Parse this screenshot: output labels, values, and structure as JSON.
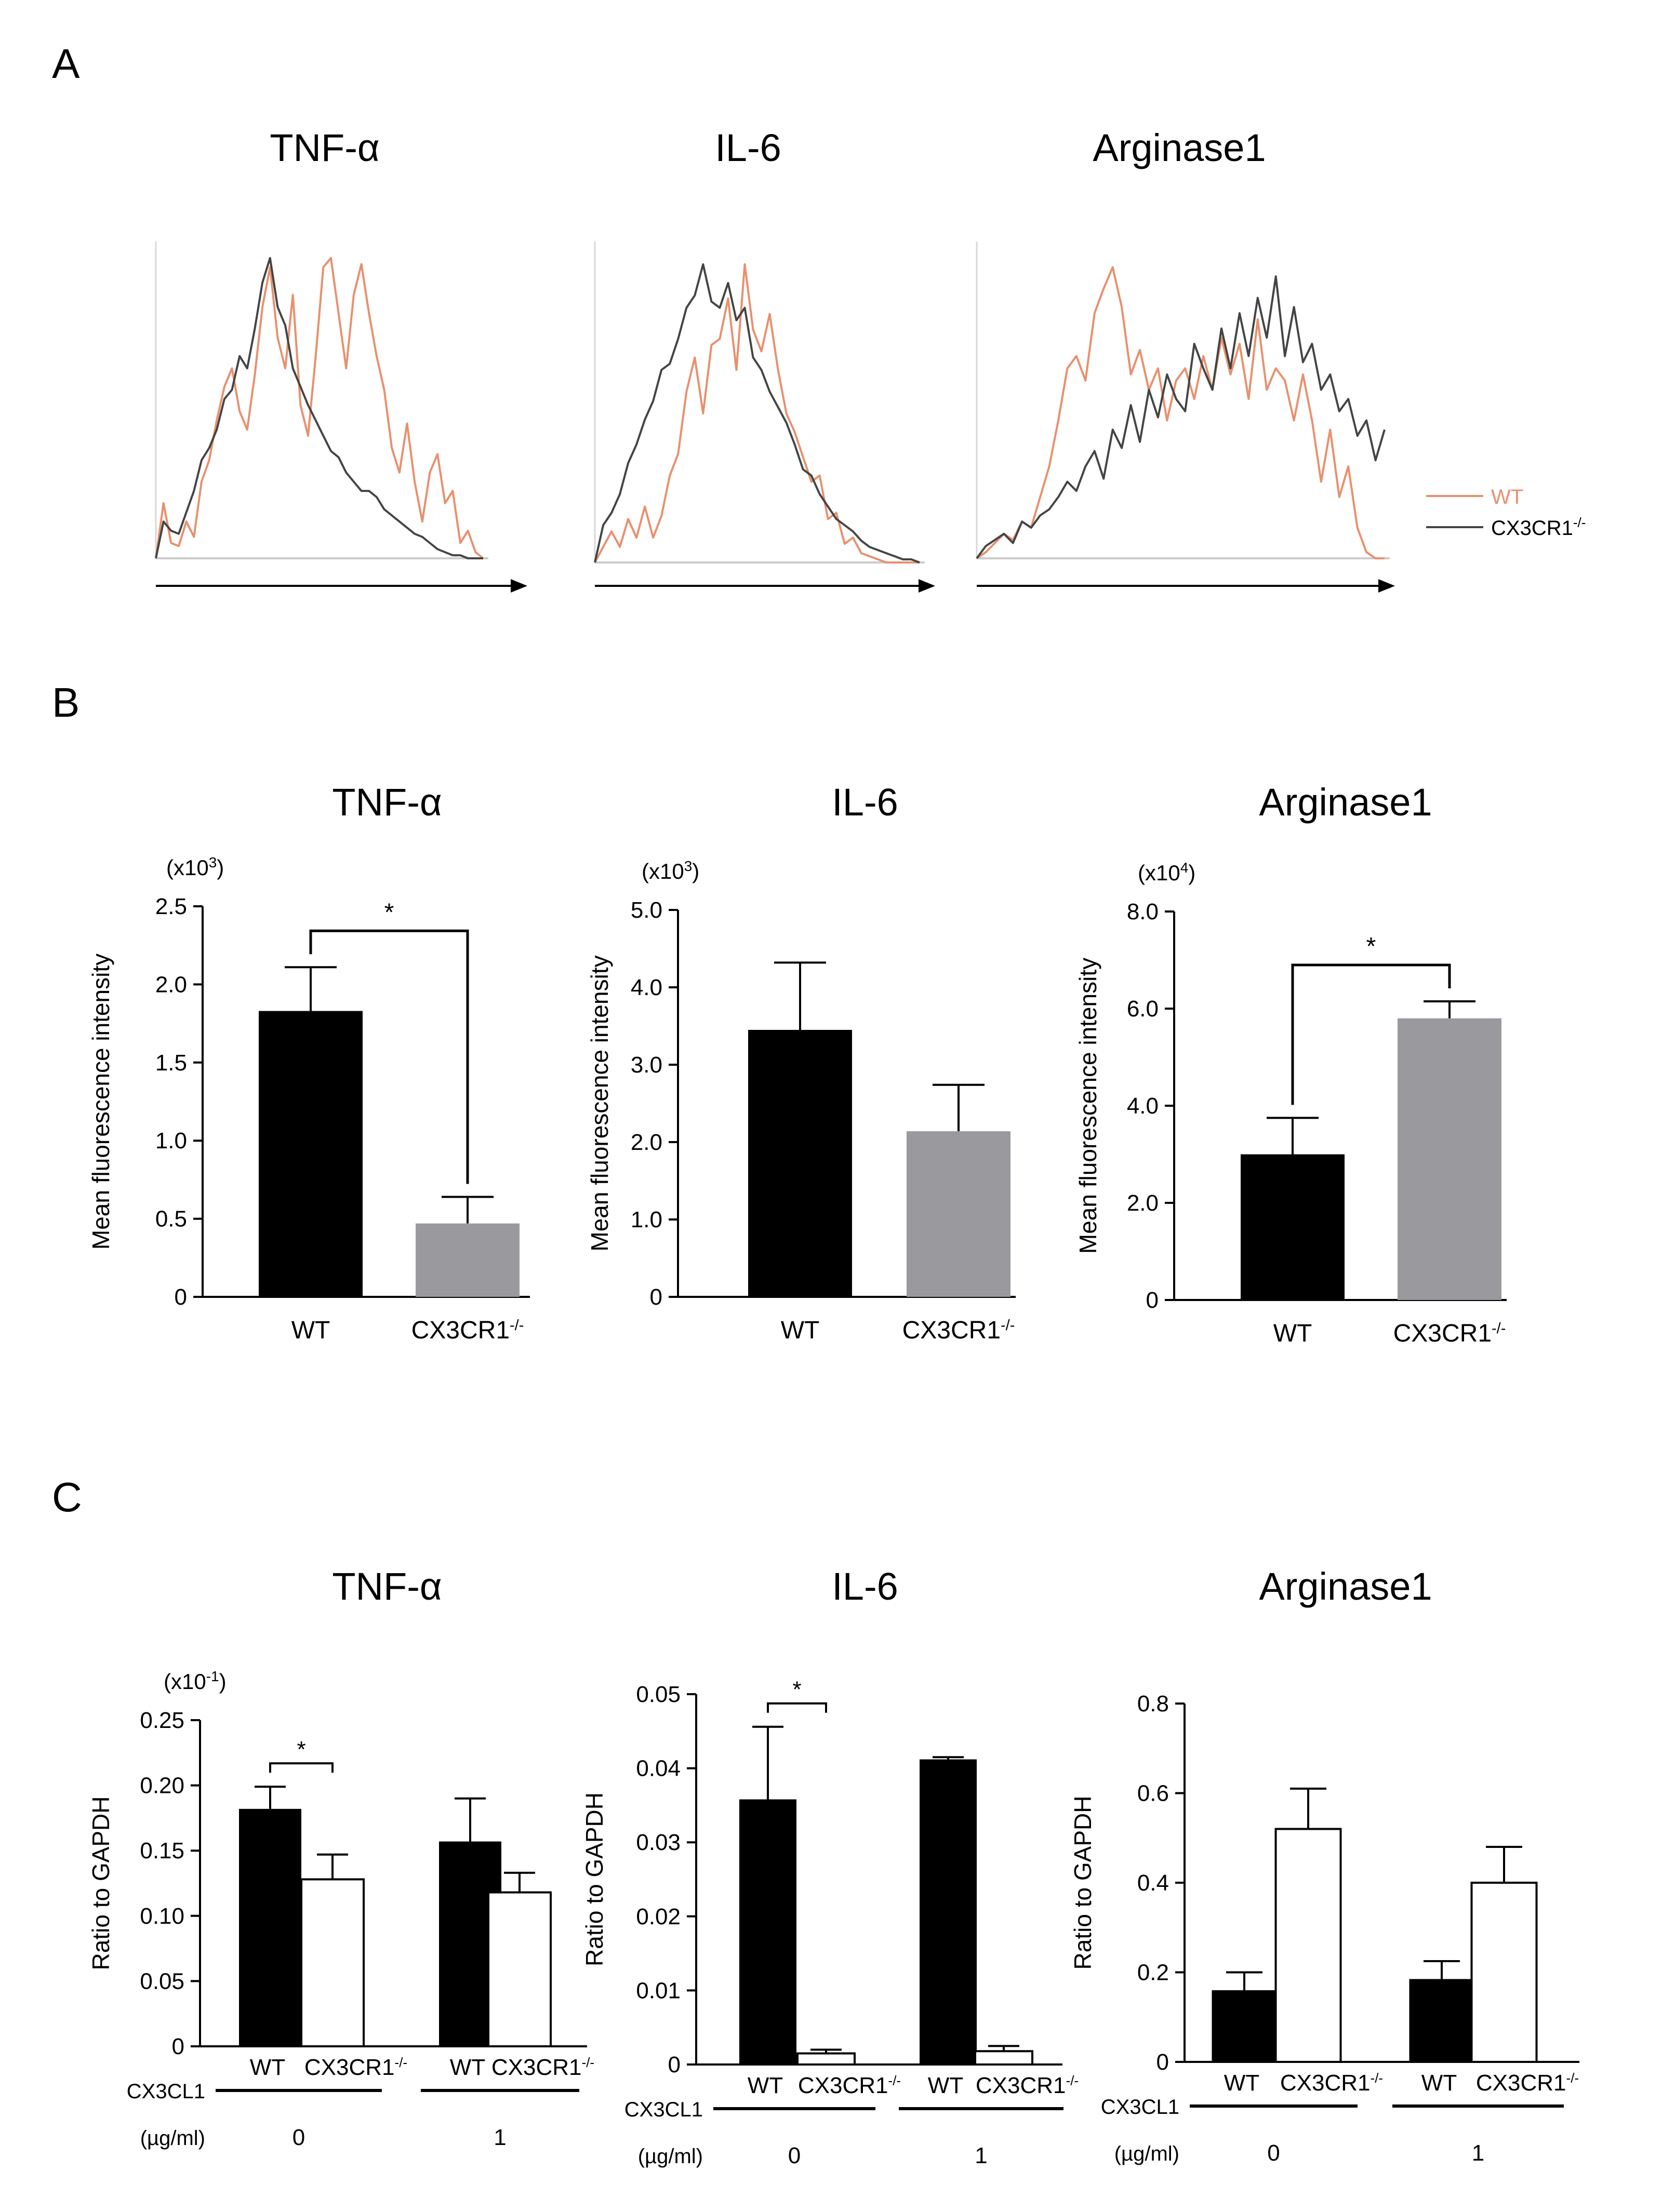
{
  "panels": {
    "A": {
      "label": "A",
      "titles": [
        "TNF-α",
        "IL-6",
        "Arginase1"
      ],
      "legend": {
        "wt_label": "WT",
        "ko_base": "CX3CR1",
        "ko_sup": "-/-",
        "wt_color": "#e8906e",
        "ko_color": "#444444"
      }
    },
    "B": {
      "label": "B",
      "ylabel": "Mean fluorescence intensity"
    },
    "C": {
      "label": "C",
      "ylabel": "Ratio to GAPDH",
      "cx3cl1_label": "CX3CL1",
      "unit_label": "(µg/ml)",
      "doses": [
        "0",
        "1"
      ]
    }
  },
  "chart_data": [
    {
      "id": "A1",
      "type": "line",
      "title": "TNF-α",
      "series": [
        {
          "name": "WT",
          "values": [
            0,
            0.18,
            0.05,
            0.04,
            0.12,
            0.07,
            0.25,
            0.32,
            0.45,
            0.56,
            0.62,
            0.48,
            0.42,
            0.6,
            0.82,
            0.95,
            0.72,
            0.62,
            0.86,
            0.5,
            0.4,
            0.66,
            0.95,
            0.98,
            0.8,
            0.62,
            0.86,
            0.96,
            0.8,
            0.66,
            0.55,
            0.36,
            0.28,
            0.44,
            0.25,
            0.12,
            0.28,
            0.34,
            0.18,
            0.22,
            0.05,
            0.09,
            0.02,
            0
          ]
        },
        {
          "name": "CX3CR1-/-",
          "values": [
            0,
            0.12,
            0.09,
            0.08,
            0.15,
            0.22,
            0.32,
            0.36,
            0.42,
            0.52,
            0.55,
            0.66,
            0.62,
            0.75,
            0.9,
            0.98,
            0.82,
            0.76,
            0.62,
            0.56,
            0.5,
            0.45,
            0.4,
            0.35,
            0.33,
            0.28,
            0.25,
            0.22,
            0.22,
            0.2,
            0.16,
            0.14,
            0.12,
            0.1,
            0.08,
            0.07,
            0.05,
            0.03,
            0.02,
            0.01,
            0.01,
            0.0,
            0.0,
            0
          ]
        }
      ]
    },
    {
      "id": "A2",
      "type": "line",
      "title": "IL-6",
      "series": [
        {
          "name": "WT",
          "values": [
            0,
            0.05,
            0.1,
            0.05,
            0.14,
            0.08,
            0.18,
            0.08,
            0.15,
            0.28,
            0.35,
            0.55,
            0.66,
            0.48,
            0.7,
            0.72,
            0.85,
            0.62,
            0.96,
            0.75,
            0.68,
            0.8,
            0.62,
            0.48,
            0.42,
            0.34,
            0.26,
            0.28,
            0.14,
            0.16,
            0.06,
            0.08,
            0.03,
            0.02,
            0.01,
            0,
            0,
            0,
            0,
            0
          ]
        },
        {
          "name": "CX3CR1-/-",
          "values": [
            0,
            0.12,
            0.16,
            0.22,
            0.32,
            0.38,
            0.46,
            0.52,
            0.62,
            0.64,
            0.72,
            0.82,
            0.86,
            0.96,
            0.84,
            0.82,
            0.9,
            0.78,
            0.82,
            0.66,
            0.62,
            0.55,
            0.5,
            0.45,
            0.38,
            0.3,
            0.28,
            0.22,
            0.18,
            0.14,
            0.12,
            0.1,
            0.07,
            0.05,
            0.04,
            0.03,
            0.02,
            0.01,
            0.01,
            0
          ]
        }
      ]
    },
    {
      "id": "A3",
      "type": "line",
      "title": "Arginase1",
      "series": [
        {
          "name": "WT",
          "values": [
            0,
            0.02,
            0.05,
            0.08,
            0.06,
            0.12,
            0.1,
            0.2,
            0.3,
            0.45,
            0.62,
            0.66,
            0.58,
            0.8,
            0.88,
            0.95,
            0.82,
            0.6,
            0.68,
            0.55,
            0.62,
            0.45,
            0.58,
            0.62,
            0.52,
            0.66,
            0.55,
            0.72,
            0.6,
            0.7,
            0.52,
            0.78,
            0.55,
            0.62,
            0.58,
            0.45,
            0.6,
            0.45,
            0.25,
            0.42,
            0.2,
            0.3,
            0.1,
            0.02,
            0.0,
            0
          ]
        },
        {
          "name": "CX3CR1-/-",
          "values": [
            0,
            0.04,
            0.06,
            0.08,
            0.05,
            0.12,
            0.1,
            0.14,
            0.16,
            0.2,
            0.25,
            0.22,
            0.3,
            0.35,
            0.26,
            0.42,
            0.36,
            0.5,
            0.38,
            0.55,
            0.46,
            0.6,
            0.52,
            0.48,
            0.7,
            0.62,
            0.55,
            0.75,
            0.62,
            0.8,
            0.66,
            0.85,
            0.72,
            0.92,
            0.66,
            0.82,
            0.64,
            0.7,
            0.55,
            0.6,
            0.48,
            0.52,
            0.4,
            0.45,
            0.32,
            0.42
          ]
        }
      ]
    },
    {
      "id": "B1",
      "type": "bar",
      "title": "TNF-α",
      "scale_label": "(x10",
      "scale_exp": "3",
      "scale_close": ")",
      "ylabel": "Mean fluorescence intensity",
      "categories": [
        "WT",
        "CX3CR1-/-"
      ],
      "values": [
        1.83,
        0.47
      ],
      "errors": [
        0.28,
        0.17
      ],
      "colors": [
        "#000000",
        "#9a9a9e"
      ],
      "ylim": [
        0,
        2.5
      ],
      "yticks": [
        "0",
        "0.5",
        "1.0",
        "1.5",
        "2.0",
        "2.5"
      ],
      "significance": "*"
    },
    {
      "id": "B2",
      "type": "bar",
      "title": "IL-6",
      "scale_label": "(x10",
      "scale_exp": "3",
      "scale_close": ")",
      "ylabel": "Mean fluorescence intensity",
      "categories": [
        "WT",
        "CX3CR1-/-"
      ],
      "values": [
        3.45,
        2.14
      ],
      "errors": [
        0.87,
        0.6
      ],
      "colors": [
        "#000000",
        "#9a9a9e"
      ],
      "ylim": [
        0,
        5.0
      ],
      "yticks": [
        "0",
        "1.0",
        "2.0",
        "3.0",
        "4.0",
        "5.0"
      ],
      "significance": ""
    },
    {
      "id": "B3",
      "type": "bar",
      "title": "Arginase1",
      "scale_label": "(x10",
      "scale_exp": "4",
      "scale_close": ")",
      "ylabel": "Mean fluorescence intensity",
      "categories": [
        "WT",
        "CX3CR1-/-"
      ],
      "values": [
        3.0,
        5.8
      ],
      "errors": [
        0.75,
        0.35
      ],
      "colors": [
        "#000000",
        "#9a9a9e"
      ],
      "ylim": [
        0,
        8.0
      ],
      "yticks": [
        "0",
        "2.0",
        "4.0",
        "6.0",
        "8.0"
      ],
      "significance": "*"
    },
    {
      "id": "C1",
      "type": "bar",
      "title": "TNF-α",
      "scale_label": "(x10",
      "scale_exp": "-1",
      "scale_close": ")",
      "ylabel": "Ratio to GAPDH",
      "categories": [
        "WT",
        "CX3CR1-/-",
        "WT",
        "CX3CR1-/-"
      ],
      "groups": [
        "0",
        "1"
      ],
      "values": [
        0.182,
        0.128,
        0.157,
        0.118
      ],
      "errors": [
        0.017,
        0.019,
        0.033,
        0.015
      ],
      "colors": [
        "#000000",
        "#ffffff",
        "#000000",
        "#ffffff"
      ],
      "ylim": [
        0,
        0.25
      ],
      "yticks": [
        "0",
        "0.05",
        "0.10",
        "0.15",
        "0.20",
        "0.25"
      ],
      "significance": "*"
    },
    {
      "id": "C2",
      "type": "bar",
      "title": "IL-6",
      "ylabel": "Ratio to GAPDH",
      "categories": [
        "WT",
        "CX3CR1-/-",
        "WT",
        "CX3CR1-/-"
      ],
      "groups": [
        "0",
        "1"
      ],
      "values": [
        0.0358,
        0.0015,
        0.0412,
        0.0018
      ],
      "errors": [
        0.0098,
        0.0005,
        0.0003,
        0.0007
      ],
      "colors": [
        "#000000",
        "#ffffff",
        "#000000",
        "#ffffff"
      ],
      "ylim": [
        0,
        0.05
      ],
      "yticks": [
        "0",
        "0.01",
        "0.02",
        "0.03",
        "0.04",
        "0.05"
      ],
      "significance": "*"
    },
    {
      "id": "C3",
      "type": "bar",
      "title": "Arginase1",
      "ylabel": "Ratio to GAPDH",
      "categories": [
        "WT",
        "CX3CR1-/-",
        "WT",
        "CX3CR1-/-"
      ],
      "groups": [
        "0",
        "1"
      ],
      "values": [
        0.16,
        0.52,
        0.185,
        0.4
      ],
      "errors": [
        0.04,
        0.09,
        0.04,
        0.08
      ],
      "colors": [
        "#000000",
        "#ffffff",
        "#000000",
        "#ffffff"
      ],
      "ylim": [
        0,
        0.8
      ],
      "yticks": [
        "0",
        "0.2",
        "0.4",
        "0.6",
        "0.8"
      ],
      "significance": ""
    }
  ]
}
